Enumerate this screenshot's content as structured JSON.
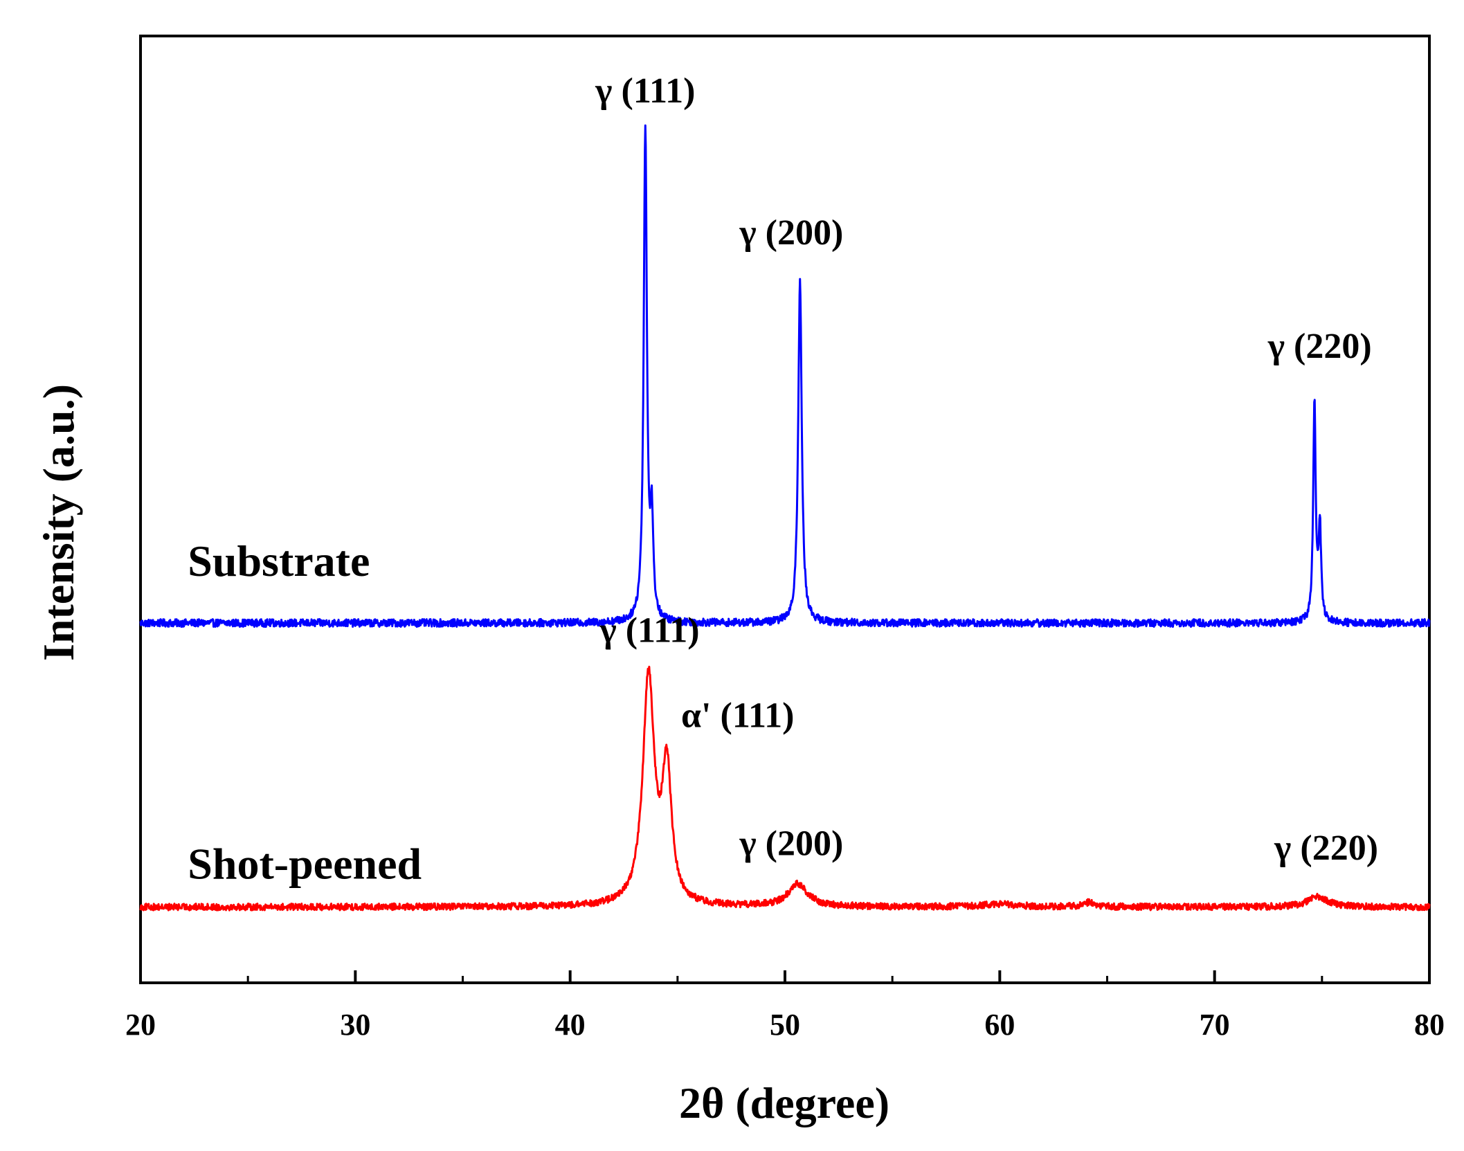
{
  "chart_data": {
    "type": "line",
    "title": "",
    "xlabel": "2θ (degree)",
    "ylabel": "Intensity (a.u.)",
    "xlim": [
      20,
      80
    ],
    "ylim": [
      0,
      100
    ],
    "xticks": [
      20,
      30,
      40,
      50,
      60,
      70,
      80
    ],
    "yticks_shown": false,
    "grid": false,
    "colors": {
      "substrate": "#0000ff",
      "shot_peened": "#ff0000",
      "axis": "#000000"
    },
    "series": [
      {
        "name": "Substrate",
        "color": "#0000ff",
        "baseline": 38,
        "noise": 0.4,
        "peaks": [
          {
            "center": 43.5,
            "height": 52,
            "width": 0.09
          },
          {
            "center": 43.8,
            "height": 10,
            "width": 0.08
          },
          {
            "center": 50.7,
            "height": 36,
            "width": 0.1
          },
          {
            "center": 74.65,
            "height": 23,
            "width": 0.07
          },
          {
            "center": 74.9,
            "height": 10,
            "width": 0.07
          }
        ]
      },
      {
        "name": "Shot-peened",
        "color": "#ff0000",
        "baseline": 8,
        "noise": 0.35,
        "peaks": [
          {
            "center": 43.65,
            "height": 24,
            "width": 0.32
          },
          {
            "center": 44.5,
            "height": 14,
            "width": 0.26
          },
          {
            "center": 50.6,
            "height": 2.4,
            "width": 0.55
          },
          {
            "center": 74.8,
            "height": 1.1,
            "width": 0.55
          },
          {
            "center": 64.2,
            "height": 0.5,
            "width": 0.3
          },
          {
            "center": 60.0,
            "height": 0.3,
            "width": 1.0
          }
        ]
      }
    ],
    "series_labels": [
      {
        "text": "Substrate",
        "x": 22.2,
        "y": 43
      },
      {
        "text": "Shot-peened",
        "x": 22.2,
        "y": 11
      }
    ],
    "annotations": [
      {
        "text": "γ (111)",
        "x": 43.5,
        "y": 93
      },
      {
        "text": "γ (200)",
        "x": 50.3,
        "y": 78
      },
      {
        "text": "γ (220)",
        "x": 74.9,
        "y": 66
      },
      {
        "text": "γ (111)",
        "x": 43.7,
        "y": 36
      },
      {
        "text": "α' (111)",
        "x": 47.8,
        "y": 27
      },
      {
        "text": "γ (200)",
        "x": 50.3,
        "y": 13.5
      },
      {
        "text": "γ (220)",
        "x": 75.2,
        "y": 13
      }
    ]
  }
}
